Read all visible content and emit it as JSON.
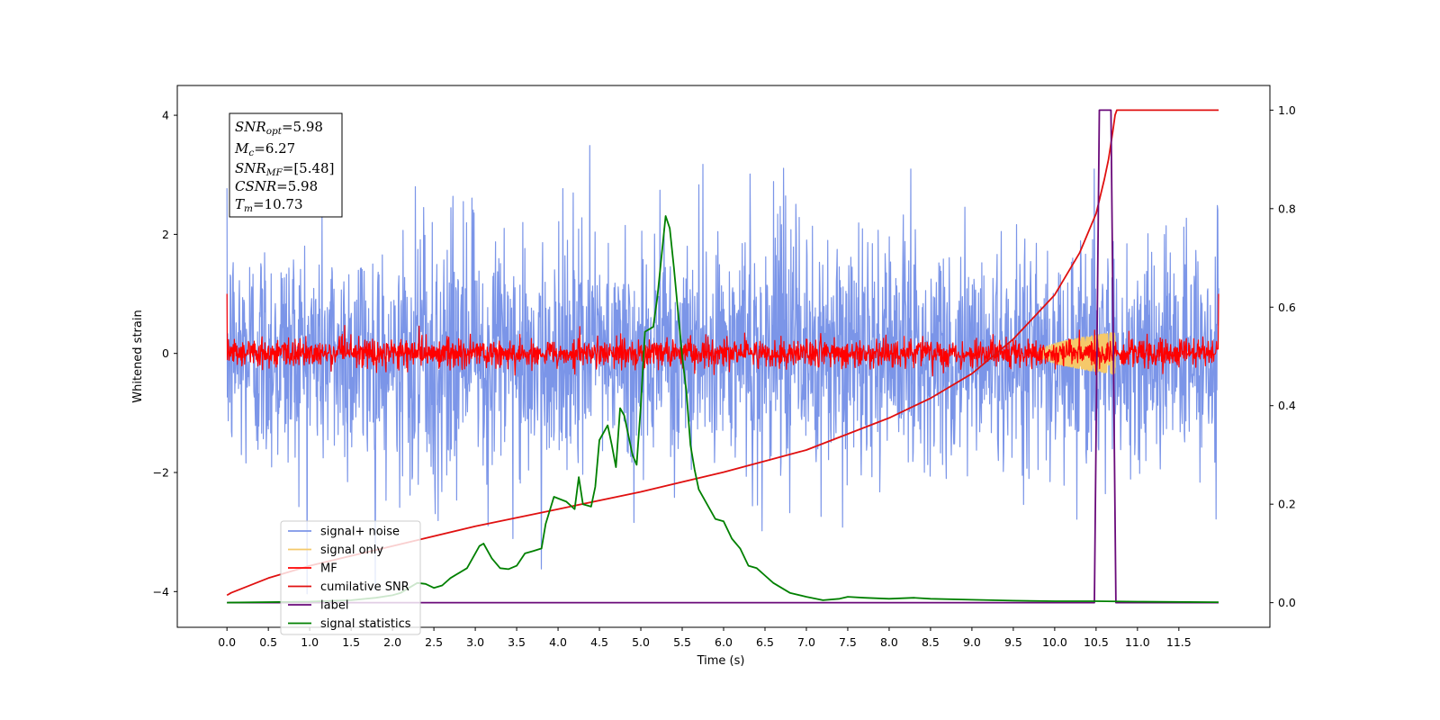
{
  "chart_data": {
    "type": "line",
    "title": "",
    "xlabel": "Time (s)",
    "ylabel": "Whitened strain",
    "y2label": "",
    "xlim": [
      -0.6,
      12.6
    ],
    "ylim": [
      -4.6,
      4.5
    ],
    "y2lim": [
      -0.05,
      1.05
    ],
    "x_ticks": [
      "0.0",
      "0.5",
      "1.0",
      "1.5",
      "2.0",
      "2.5",
      "3.0",
      "3.5",
      "4.0",
      "4.5",
      "5.0",
      "5.5",
      "6.0",
      "6.5",
      "7.0",
      "7.5",
      "8.0",
      "8.5",
      "9.0",
      "9.5",
      "10.0",
      "10.5",
      "11.0",
      "11.5"
    ],
    "y_ticks": [
      "4",
      "2",
      "0",
      "−2",
      "−4"
    ],
    "y2_ticks": [
      "1.0",
      "0.8",
      "0.6",
      "0.4",
      "0.2",
      "0.0"
    ],
    "info_box": {
      "snr_opt": {
        "base": "SNR",
        "sub": "opt",
        "value": "=5.98"
      },
      "mc": {
        "base": "M",
        "sub": "c",
        "value": "=6.27"
      },
      "snr_mf": {
        "base": "SNR",
        "sub": "MF",
        "value": "=[5.48]"
      },
      "csnr": {
        "base": "CSNR",
        "sub": "",
        "value": "=5.98"
      },
      "tm": {
        "base": "T",
        "sub": "m",
        "value": "=10.73"
      }
    },
    "legend": {
      "position": "lower-left",
      "entries": [
        {
          "label": "signal+ noise",
          "color": "#7b95e8"
        },
        {
          "label": "signal only",
          "color": "#f5c96a"
        },
        {
          "label": "MF",
          "color": "#ff0000"
        },
        {
          "label": "cumilative SNR",
          "color": "#e01010"
        },
        {
          "label": "label",
          "color": "#6a0a7a"
        },
        {
          "label": "signal statistics",
          "color": "#008000"
        }
      ]
    },
    "series": [
      {
        "name": "signal+ noise",
        "axis": "left",
        "kind": "noise",
        "x_range": [
          0.0,
          11.98
        ],
        "sigma": 1.0,
        "peak": 4.05,
        "color": "#7b95e8"
      },
      {
        "name": "signal only",
        "axis": "left",
        "kind": "chirp",
        "x_range": [
          9.8,
          10.73
        ],
        "amplitude": 0.35,
        "color": "#f5c96a"
      },
      {
        "name": "MF",
        "axis": "left",
        "kind": "noise",
        "x_range": [
          0.0,
          11.98
        ],
        "sigma": 0.12,
        "peak": 0.62,
        "start": 1.0,
        "end": 1.0,
        "color": "#ff0000"
      },
      {
        "name": "cumilative SNR",
        "axis": "right",
        "color": "#e01010",
        "x": [
          0.0,
          0.05,
          0.5,
          1.0,
          2.0,
          3.0,
          4.0,
          5.0,
          6.0,
          7.0,
          8.0,
          8.5,
          9.0,
          9.5,
          10.0,
          10.3,
          10.5,
          10.6,
          10.65,
          10.7,
          10.73,
          10.75,
          11.98
        ],
        "y": [
          0.015,
          0.02,
          0.05,
          0.075,
          0.115,
          0.155,
          0.19,
          0.225,
          0.265,
          0.31,
          0.375,
          0.415,
          0.465,
          0.535,
          0.625,
          0.71,
          0.79,
          0.86,
          0.9,
          0.955,
          0.99,
          1.0,
          1.0
        ]
      },
      {
        "name": "label",
        "axis": "right",
        "color": "#6a0a7a",
        "x": [
          0.0,
          10.48,
          10.54,
          10.68,
          10.74,
          11.98
        ],
        "y": [
          0.0,
          0.0,
          1.0,
          1.0,
          0.0,
          0.0
        ]
      },
      {
        "name": "signal statistics",
        "axis": "right",
        "color": "#008000",
        "x": [
          0.0,
          1.0,
          1.5,
          1.8,
          2.0,
          2.1,
          2.2,
          2.3,
          2.4,
          2.5,
          2.6,
          2.7,
          2.8,
          2.9,
          3.0,
          3.05,
          3.1,
          3.2,
          3.3,
          3.4,
          3.5,
          3.6,
          3.7,
          3.8,
          3.85,
          3.95,
          4.1,
          4.2,
          4.25,
          4.3,
          4.4,
          4.45,
          4.5,
          4.6,
          4.65,
          4.7,
          4.75,
          4.8,
          4.9,
          4.95,
          5.0,
          5.05,
          5.15,
          5.2,
          5.3,
          5.35,
          5.4,
          5.5,
          5.55,
          5.6,
          5.65,
          5.7,
          5.8,
          5.9,
          6.0,
          6.1,
          6.2,
          6.3,
          6.4,
          6.5,
          6.6,
          6.8,
          7.0,
          7.2,
          7.4,
          7.5,
          7.7,
          8.0,
          8.3,
          8.5,
          9.0,
          9.5,
          10.0,
          10.5,
          11.0,
          11.98
        ],
        "y": [
          0.0,
          0.002,
          0.005,
          0.01,
          0.015,
          0.02,
          0.03,
          0.04,
          0.038,
          0.03,
          0.035,
          0.05,
          0.06,
          0.07,
          0.1,
          0.115,
          0.12,
          0.09,
          0.07,
          0.068,
          0.075,
          0.1,
          0.105,
          0.11,
          0.16,
          0.215,
          0.205,
          0.19,
          0.255,
          0.2,
          0.195,
          0.235,
          0.33,
          0.36,
          0.32,
          0.275,
          0.395,
          0.38,
          0.3,
          0.28,
          0.4,
          0.55,
          0.56,
          0.62,
          0.785,
          0.76,
          0.68,
          0.5,
          0.43,
          0.32,
          0.27,
          0.23,
          0.2,
          0.17,
          0.165,
          0.13,
          0.11,
          0.075,
          0.07,
          0.055,
          0.04,
          0.02,
          0.012,
          0.005,
          0.008,
          0.012,
          0.01,
          0.008,
          0.01,
          0.008,
          0.006,
          0.004,
          0.003,
          0.003,
          0.002,
          0.001
        ]
      }
    ]
  }
}
